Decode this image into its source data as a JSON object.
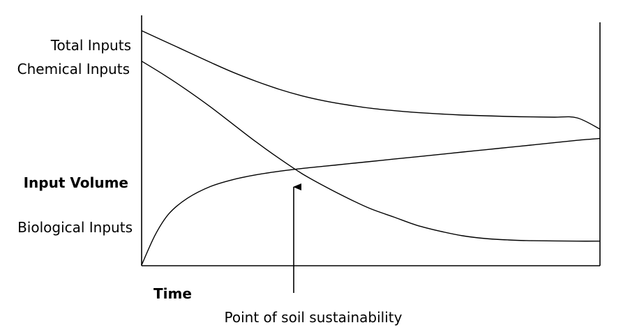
{
  "chart_data": {
    "type": "line",
    "title": "",
    "xlabel": "Time",
    "ylabel": "Input Volume",
    "x_ticks": [],
    "y_ticks": [],
    "xlim": [
      0,
      100
    ],
    "ylim": [
      0,
      100
    ],
    "grid": false,
    "legend": "none",
    "curve_labels": {
      "total": "Total Inputs",
      "chemical": "Chemical Inputs",
      "biological": "Biological Inputs"
    },
    "series": [
      {
        "key": "total",
        "x": [
          0,
          5,
          10,
          15,
          20,
          25,
          30,
          35,
          40,
          45,
          50,
          55,
          60,
          65,
          70,
          75,
          80,
          85,
          90,
          95,
          100
        ],
        "values": [
          100,
          95.5,
          91.0,
          86.5,
          82.2,
          78.4,
          75.0,
          72.2,
          70.0,
          68.3,
          66.9,
          65.9,
          65.1,
          64.5,
          64.0,
          63.7,
          63.4,
          63.2,
          63.1,
          62.8,
          58.0
        ]
      },
      {
        "key": "chemical",
        "x": [
          0,
          5,
          10,
          15,
          20,
          25,
          30,
          35,
          40,
          45,
          50,
          55,
          60,
          65,
          70,
          75,
          80,
          85,
          90,
          95,
          100
        ],
        "values": [
          87.0,
          81.0,
          74.5,
          67.5,
          60.0,
          52.5,
          45.5,
          39.0,
          33.5,
          28.5,
          24.0,
          20.5,
          17.0,
          14.5,
          12.5,
          11.3,
          10.7,
          10.4,
          10.3,
          10.2,
          10.2
        ]
      },
      {
        "key": "biological",
        "x": [
          0,
          3,
          6,
          10,
          15,
          20,
          25,
          30,
          35,
          40,
          45,
          50,
          55,
          60,
          65,
          70,
          75,
          80,
          85,
          90,
          95,
          100
        ],
        "values": [
          0,
          13,
          22,
          28.5,
          33.5,
          36.5,
          38.5,
          40.0,
          41.2,
          42.2,
          43.2,
          44.2,
          45.2,
          46.2,
          47.2,
          48.2,
          49.2,
          50.2,
          51.2,
          52.2,
          53.2,
          54.0
        ]
      }
    ],
    "annotation": {
      "text": "Point of soil sustainability",
      "x": 33
    }
  }
}
